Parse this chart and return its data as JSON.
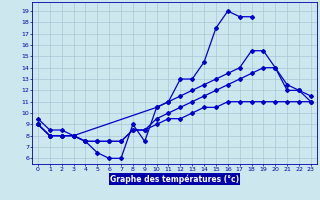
{
  "curve1_x": [
    0,
    1,
    2,
    3,
    4,
    5,
    6,
    7,
    8,
    9,
    10,
    11,
    12,
    13,
    14,
    15,
    16,
    17,
    18
  ],
  "curve1_y": [
    9.5,
    8.5,
    8.5,
    8.0,
    7.5,
    6.5,
    6.0,
    6.0,
    9.0,
    7.5,
    10.5,
    11.0,
    13.0,
    13.0,
    14.5,
    17.5,
    19.0,
    18.5,
    18.5
  ],
  "curve2_x": [
    0,
    1,
    2,
    3,
    10,
    11,
    12,
    13,
    14,
    15,
    16,
    17,
    18,
    19,
    20,
    21,
    22,
    23
  ],
  "curve2_y": [
    9.0,
    8.0,
    8.0,
    8.0,
    10.5,
    11.0,
    11.5,
    12.0,
    12.5,
    13.0,
    13.5,
    14.0,
    15.5,
    15.5,
    14.0,
    12.0,
    12.0,
    11.0
  ],
  "curve3_x": [
    0,
    1,
    2,
    3,
    4,
    5,
    6,
    7,
    8,
    9,
    10,
    11,
    12,
    13,
    14,
    15,
    16,
    17,
    18,
    19,
    20,
    21,
    22,
    23
  ],
  "curve3_y": [
    9.0,
    8.0,
    8.0,
    8.0,
    7.5,
    7.5,
    7.5,
    7.5,
    8.5,
    8.5,
    9.0,
    9.5,
    9.5,
    10.0,
    10.5,
    10.5,
    11.0,
    11.0,
    11.0,
    11.0,
    11.0,
    11.0,
    11.0,
    11.0
  ],
  "curve4_x": [
    0,
    1,
    2,
    3,
    4,
    5,
    6,
    7,
    8,
    9,
    10,
    11,
    12,
    13,
    14,
    15,
    16,
    17,
    18,
    19,
    20,
    21,
    22,
    23
  ],
  "curve4_y": [
    9.0,
    8.0,
    8.0,
    8.0,
    7.5,
    7.5,
    7.5,
    7.5,
    8.5,
    8.5,
    9.5,
    10.0,
    10.5,
    11.0,
    11.5,
    12.0,
    12.5,
    13.0,
    13.5,
    14.0,
    14.0,
    12.5,
    12.0,
    11.5
  ],
  "xlabel": "Graphe des températures (°c)",
  "yticks": [
    6,
    7,
    8,
    9,
    10,
    11,
    12,
    13,
    14,
    15,
    16,
    17,
    18,
    19
  ],
  "xticks": [
    0,
    1,
    2,
    3,
    4,
    5,
    6,
    7,
    8,
    9,
    10,
    11,
    12,
    13,
    14,
    15,
    16,
    17,
    18,
    19,
    20,
    21,
    22,
    23
  ],
  "ylim": [
    5.5,
    19.8
  ],
  "xlim": [
    -0.5,
    23.5
  ],
  "line_color": "#0000cc",
  "bg_color": "#cce8ee",
  "grid_color": "#9fbfcf",
  "axis_color": "#0000aa",
  "axis_bg": "#0000aa"
}
